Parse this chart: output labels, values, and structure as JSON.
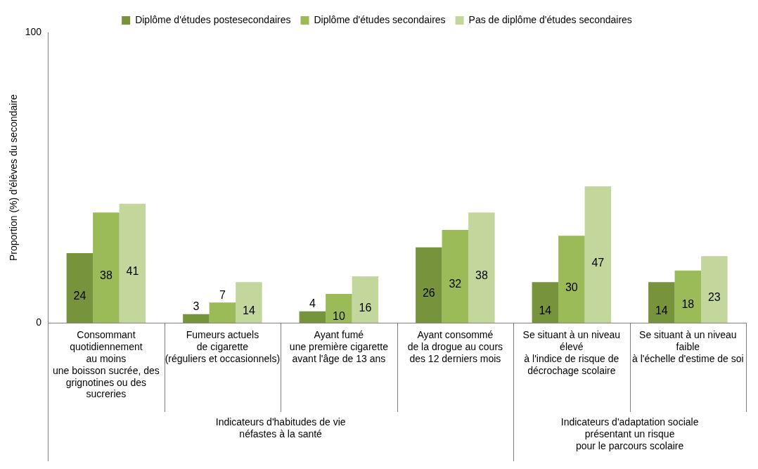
{
  "chart_data": {
    "type": "bar",
    "ylabel": "Proportion (%) d'élèves du secondaire",
    "categories": [
      "Consommant\nquotidiennement\nau moins\nune boisson sucrée, des\ngrignotines ou des\nsucreries",
      "Fumeurs actuels\nde cigarette\n(réguliers et occasionnels)",
      "Ayant fumé\nune première cigarette\navant l'âge de 13 ans",
      "Ayant consommé\nde la drogue au cours\ndes 12 derniers mois",
      "Se situant à un niveau\nélevé\nà l'indice de risque de\ndécrochage scolaire",
      "Se situant à un niveau\nfaible\nà l'échelle d'estime de soi"
    ],
    "series": [
      {
        "name": "Diplôme d'études postesecondaires",
        "color": "#77933c",
        "values": [
          24,
          3,
          4,
          26,
          14,
          14
        ]
      },
      {
        "name": "Diplôme d'études secondaires",
        "color": "#9bbb59",
        "values": [
          38,
          7,
          10,
          32,
          30,
          18
        ]
      },
      {
        "name": "Pas de diplôme d'études secondaires",
        "color": "#c3d69b",
        "values": [
          41,
          14,
          16,
          38,
          47,
          23
        ]
      }
    ],
    "ylim": [
      0,
      100
    ],
    "yticks": [
      0,
      100
    ],
    "grid": false,
    "legend": "top",
    "data_labels": true,
    "annotations": [
      "Indicateurs d'habitudes de vie\nnéfastes à la santé",
      "Indicateurs d'adaptation sociale\nprésentant un risque\npour le parcours scolaire"
    ]
  }
}
